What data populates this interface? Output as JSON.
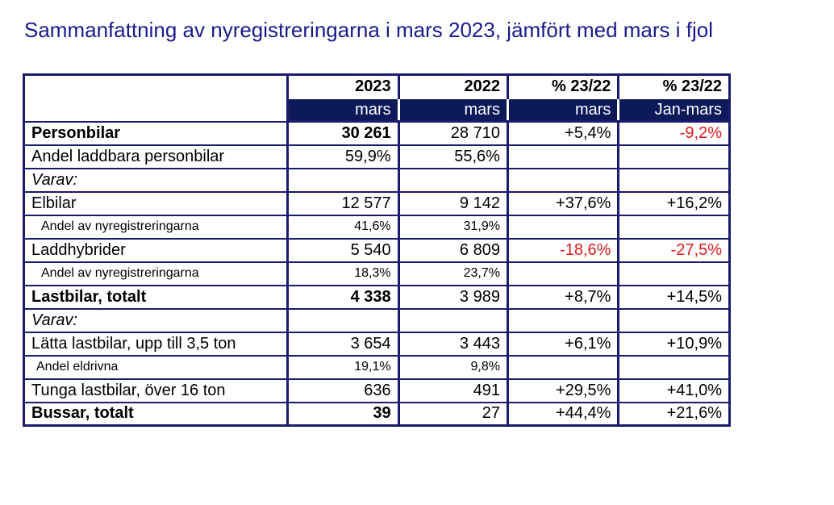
{
  "title": "Sammanfattning av nyregistreringarna i mars 2023, jämfört med mars i fjol",
  "header": {
    "years": [
      "2023",
      "2022",
      "% 23/22",
      "% 23/22"
    ],
    "sub": [
      "mars",
      "mars",
      "mars",
      "Jan-mars"
    ]
  },
  "rows": [
    {
      "label": "Personbilar",
      "v2023": "30 261",
      "v2022": "28 710",
      "pct_mars": "+5,4%",
      "pct_jan": "-9,2%"
    },
    {
      "label": "Andel laddbara personbilar",
      "v2023": "59,9%",
      "v2022": "55,6%",
      "pct_mars": "",
      "pct_jan": ""
    },
    {
      "label": "Varav:",
      "v2023": "",
      "v2022": "",
      "pct_mars": "",
      "pct_jan": ""
    },
    {
      "label": "Elbilar",
      "v2023": "12 577",
      "v2022": "9 142",
      "pct_mars": "+37,6%",
      "pct_jan": "+16,2%"
    },
    {
      "label": "Andel av nyregistreringarna",
      "v2023": "41,6%",
      "v2022": "31,9%",
      "pct_mars": "",
      "pct_jan": ""
    },
    {
      "label": "Laddhybrider",
      "v2023": "5 540",
      "v2022": "6 809",
      "pct_mars": "-18,6%",
      "pct_jan": "-27,5%"
    },
    {
      "label": "Andel av nyregistreringarna",
      "v2023": "18,3%",
      "v2022": "23,7%",
      "pct_mars": "",
      "pct_jan": ""
    },
    {
      "label": "Lastbilar, totalt",
      "v2023": "4 338",
      "v2022": "3 989",
      "pct_mars": "+8,7%",
      "pct_jan": "+14,5%"
    },
    {
      "label": "Varav:",
      "v2023": "",
      "v2022": "",
      "pct_mars": "",
      "pct_jan": ""
    },
    {
      "label": "Lätta lastbilar, upp till 3,5 ton",
      "v2023": "3 654",
      "v2022": "3 443",
      "pct_mars": "+6,1%",
      "pct_jan": "+10,9%"
    },
    {
      "label": "Andel eldrivna",
      "v2023": "19,1%",
      "v2022": "9,8%",
      "pct_mars": "",
      "pct_jan": ""
    },
    {
      "label": "Tunga lastbilar, över 16 ton",
      "v2023": "636",
      "v2022": "491",
      "pct_mars": "+29,5%",
      "pct_jan": "+41,0%"
    },
    {
      "label": "Bussar, totalt",
      "v2023": "39",
      "v2022": "27",
      "pct_mars": "+44,4%",
      "pct_jan": "+21,6%"
    }
  ],
  "colors": {
    "title": "#1a1a8c",
    "border": "#1a1a6e",
    "header_band": "#0d1a5a",
    "negative": "#e21a1a"
  }
}
